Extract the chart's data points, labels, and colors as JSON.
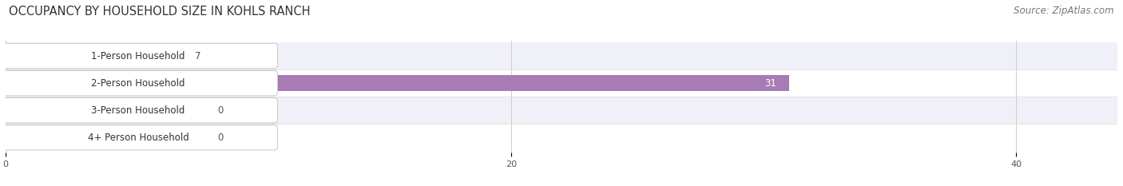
{
  "title": "OCCUPANCY BY HOUSEHOLD SIZE IN KOHLS RANCH",
  "source": "Source: ZipAtlas.com",
  "categories": [
    "1-Person Household",
    "2-Person Household",
    "3-Person Household",
    "4+ Person Household"
  ],
  "values": [
    7,
    31,
    0,
    0
  ],
  "bar_colors": [
    "#8ab4d8",
    "#a97bb5",
    "#5dbfb5",
    "#9999cc"
  ],
  "row_bg_colors": [
    "#f0f0f8",
    "#ffffff",
    "#f0f0f8",
    "#ffffff"
  ],
  "xlim": [
    0,
    44
  ],
  "xticks": [
    0,
    20,
    40
  ],
  "title_fontsize": 10.5,
  "source_fontsize": 8.5,
  "label_fontsize": 8.5,
  "value_fontsize": 8.5,
  "value_31_color": "white",
  "value_other_color": "#555555"
}
